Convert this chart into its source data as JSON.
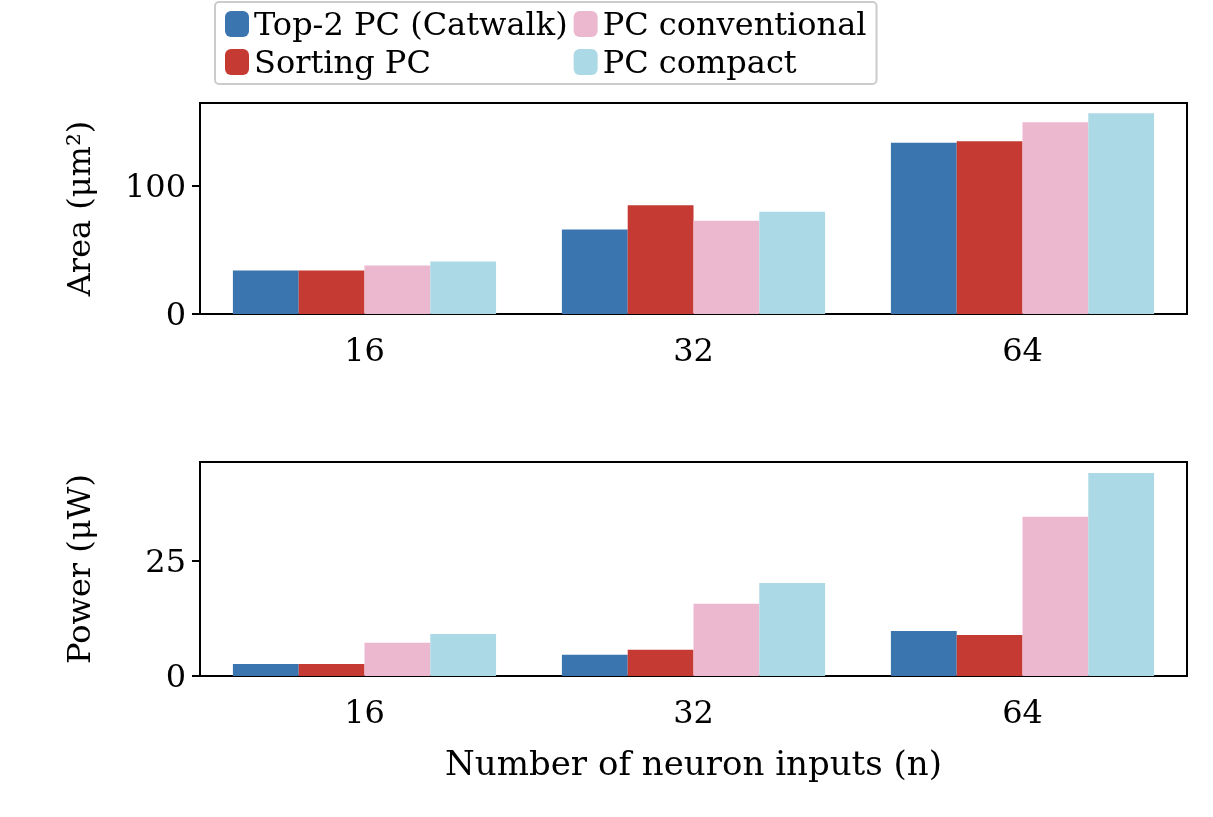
{
  "chart_data": [
    {
      "type": "bar",
      "ylabel": "Area (μm²)",
      "categories": [
        "16",
        "32",
        "64"
      ],
      "ylim": [
        0,
        165
      ],
      "yticks": [
        0,
        100
      ],
      "legend": "top",
      "grid": false,
      "series": [
        {
          "name": "Top-2 PC (Catwalk)",
          "color": "#3a75af",
          "values": [
            34,
            66,
            134
          ]
        },
        {
          "name": "Sorting PC",
          "color": "#c53a32",
          "values": [
            34,
            85,
            135
          ]
        },
        {
          "name": "PC conventional",
          "color": "#ecb8cf",
          "values": [
            38,
            73,
            150
          ]
        },
        {
          "name": "PC compact",
          "color": "#abd9e5",
          "values": [
            41,
            80,
            157
          ]
        }
      ]
    },
    {
      "type": "bar",
      "ylabel": "Power (μW)",
      "xlabel": "Number of neuron inputs (n)",
      "categories": [
        "16",
        "32",
        "64"
      ],
      "ylim": [
        0,
        46.5
      ],
      "yticks": [
        0,
        25
      ],
      "grid": false,
      "series": [
        {
          "color": "#3a75af",
          "values": [
            2.6,
            4.6,
            9.8
          ]
        },
        {
          "color": "#c53a32",
          "values": [
            2.6,
            5.7,
            8.9
          ]
        },
        {
          "color": "#ecb8cf",
          "values": [
            7.2,
            15.7,
            34.6
          ]
        },
        {
          "color": "#abd9e5",
          "values": [
            9.1,
            20.2,
            44.1
          ]
        }
      ]
    }
  ]
}
